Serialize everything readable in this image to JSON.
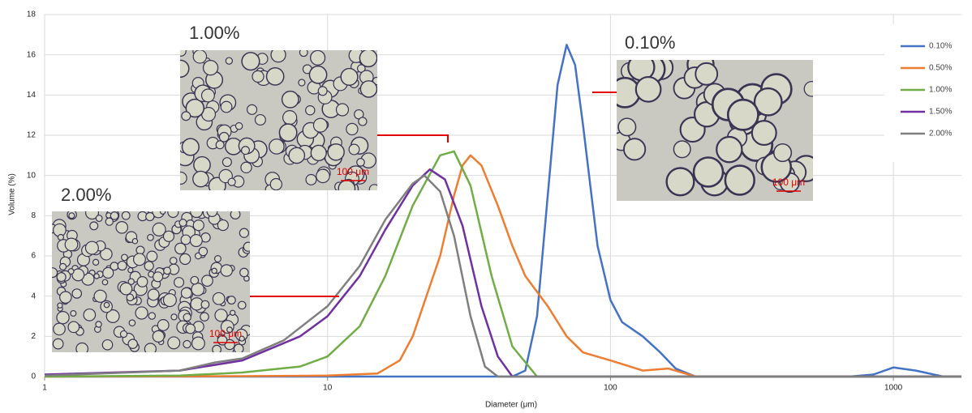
{
  "chart_data": {
    "type": "line",
    "xlabel": "Diameter (μm)",
    "ylabel": "Volume (%)",
    "xscale": "log",
    "xlim": [
      1,
      1740
    ],
    "xticks": [
      1,
      10,
      100,
      1000
    ],
    "ylim": [
      0,
      18
    ],
    "yticks": [
      0,
      2,
      4,
      6,
      8,
      10,
      12,
      14,
      16,
      18
    ],
    "grid": true,
    "legend": "upper right",
    "series": [
      {
        "name": "0.10%",
        "color": "#4472c4",
        "x": [
          1,
          45,
          50,
          55,
          60,
          65,
          70,
          75,
          80,
          90,
          100,
          110,
          130,
          150,
          170,
          200,
          700,
          850,
          1000,
          1200,
          1500,
          1740
        ],
        "values": [
          0,
          0,
          0.3,
          3,
          9,
          14.5,
          16.5,
          15.5,
          12.5,
          6.5,
          3.8,
          2.7,
          2,
          1.2,
          0.4,
          0,
          0,
          0.1,
          0.45,
          0.3,
          0,
          0
        ]
      },
      {
        "name": "0.50%",
        "color": "#ed7d31",
        "x": [
          1,
          5,
          10,
          15,
          18,
          20,
          25,
          28,
          30,
          32,
          35,
          40,
          45,
          50,
          60,
          70,
          80,
          100,
          130,
          160,
          200,
          1740
        ],
        "values": [
          0,
          0.02,
          0.05,
          0.15,
          0.8,
          2,
          6,
          9,
          10.5,
          11,
          10.5,
          8.5,
          6.5,
          5,
          3.5,
          2,
          1.2,
          0.8,
          0.3,
          0.4,
          0,
          0
        ]
      },
      {
        "name": "1.00%",
        "color": "#70ad47",
        "x": [
          1,
          3,
          5,
          8,
          10,
          13,
          16,
          20,
          25,
          28,
          32,
          38,
          45,
          55,
          1740
        ],
        "values": [
          0,
          0.05,
          0.2,
          0.5,
          1,
          2.5,
          5,
          8.5,
          11,
          11.2,
          9.5,
          5,
          1.5,
          0,
          0
        ]
      },
      {
        "name": "1.50%",
        "color": "#7030a0",
        "x": [
          1,
          3,
          5,
          8,
          10,
          13,
          16,
          20,
          23,
          26,
          30,
          35,
          40,
          45,
          1740
        ],
        "values": [
          0.1,
          0.3,
          0.8,
          2,
          3,
          5,
          7.3,
          9.5,
          10.3,
          9.8,
          7.5,
          3.5,
          1,
          0,
          0
        ]
      },
      {
        "name": "2.00%",
        "color": "#7f7f7f",
        "x": [
          1,
          3,
          4,
          5,
          7,
          10,
          13,
          16,
          20,
          22,
          25,
          28,
          32,
          36,
          40,
          1740
        ],
        "values": [
          0.05,
          0.3,
          0.7,
          0.9,
          1.8,
          3.5,
          5.5,
          7.8,
          9.6,
          10,
          9.2,
          7,
          3,
          0.5,
          0,
          0
        ]
      }
    ],
    "insets": [
      {
        "label": "1.00%",
        "scale_bar": "100 μm"
      },
      {
        "label": "0.10%",
        "scale_bar": "100 μm"
      },
      {
        "label": "2.00%",
        "scale_bar": "100 μm"
      }
    ]
  }
}
